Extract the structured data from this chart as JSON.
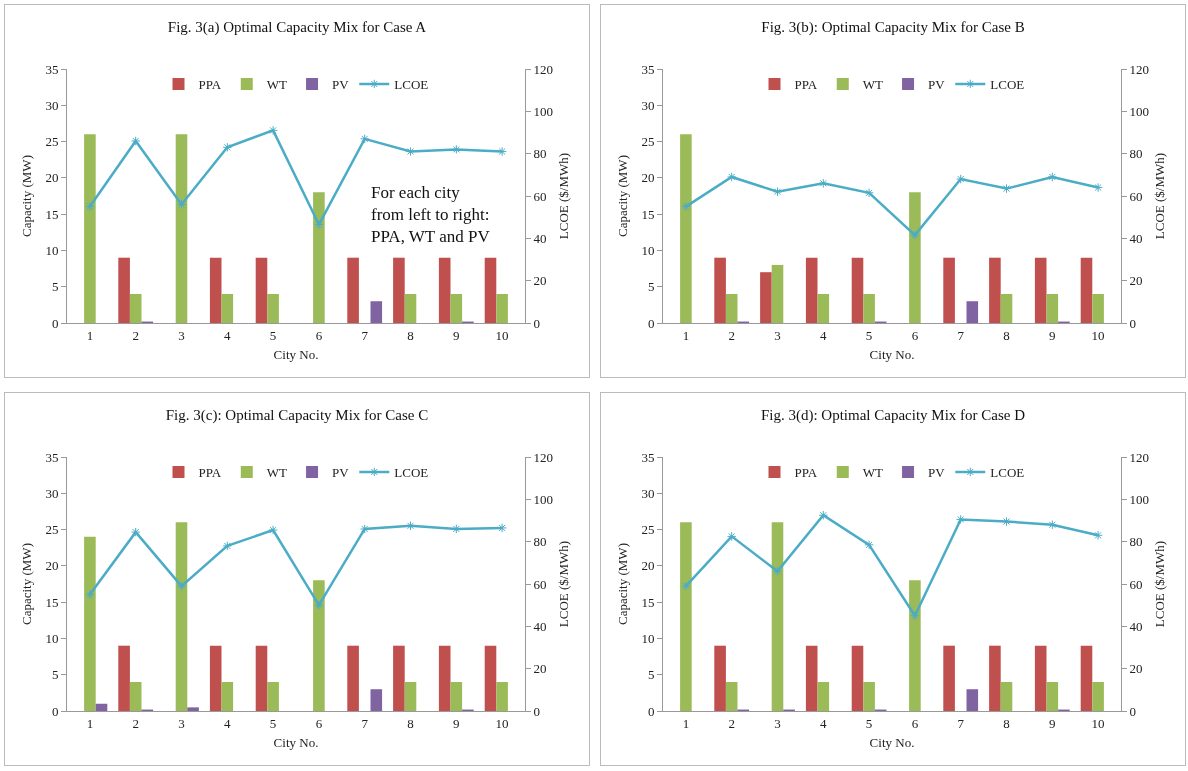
{
  "chart_data": [
    {
      "type": "bar",
      "title": "Fig. 3(a) Optimal Capacity Mix for Case A",
      "xlabel": "City No.",
      "ylabel": "Capacity (MW)",
      "y2label": "LCOE ($/MWh)",
      "categories": [
        "1",
        "2",
        "3",
        "4",
        "5",
        "6",
        "7",
        "8",
        "9",
        "10"
      ],
      "series": [
        {
          "name": "PPA",
          "color": "#c0504d",
          "values": [
            0,
            9,
            0,
            9,
            9,
            0,
            9,
            9,
            9,
            9
          ]
        },
        {
          "name": "WT",
          "color": "#9bbb59",
          "values": [
            26,
            4,
            26,
            4,
            4,
            18,
            0,
            4,
            4,
            4
          ]
        },
        {
          "name": "PV",
          "color": "#8064a2",
          "values": [
            0,
            0.2,
            0,
            0,
            0,
            0,
            3,
            0,
            0.2,
            0
          ]
        },
        {
          "name": "LCOE",
          "type": "line",
          "axis": "y2",
          "color": "#4bacc6",
          "values": [
            55,
            86,
            56,
            83,
            91,
            46.5,
            87,
            81,
            82,
            81
          ]
        }
      ],
      "ylim": [
        0,
        35
      ],
      "yticks": [
        0,
        5,
        10,
        15,
        20,
        25,
        30,
        35
      ],
      "y2lim": [
        0,
        120
      ],
      "y2ticks": [
        0,
        20,
        40,
        60,
        80,
        100,
        120
      ],
      "grid": false,
      "legend": "top",
      "marker": "cross",
      "line_style": "solid",
      "annotations": [
        "For each city\nfrom left to right:\nPPA, WT and PV"
      ]
    },
    {
      "type": "bar",
      "title": "Fig. 3(b): Optimal Capacity Mix for Case B",
      "xlabel": "City No.",
      "ylabel": "Capacity (MW)",
      "y2label": "LCOE ($/MWh)",
      "categories": [
        "1",
        "2",
        "3",
        "4",
        "5",
        "6",
        "7",
        "8",
        "9",
        "10"
      ],
      "series": [
        {
          "name": "PPA",
          "color": "#c0504d",
          "values": [
            0,
            9,
            7,
            9,
            9,
            0,
            9,
            9,
            9,
            9
          ]
        },
        {
          "name": "WT",
          "color": "#9bbb59",
          "values": [
            26,
            4,
            8,
            4,
            4,
            18,
            0,
            4,
            4,
            4
          ]
        },
        {
          "name": "PV",
          "color": "#8064a2",
          "values": [
            0,
            0.2,
            0,
            0,
            0.2,
            0,
            3,
            0,
            0.2,
            0
          ]
        },
        {
          "name": "LCOE",
          "type": "line",
          "axis": "y2",
          "color": "#4bacc6",
          "values": [
            55,
            69,
            62,
            66,
            61.5,
            41.5,
            68,
            63.5,
            69,
            64
          ]
        }
      ],
      "ylim": [
        0,
        35
      ],
      "yticks": [
        0,
        5,
        10,
        15,
        20,
        25,
        30,
        35
      ],
      "y2lim": [
        0,
        120
      ],
      "y2ticks": [
        0,
        20,
        40,
        60,
        80,
        100,
        120
      ],
      "grid": false,
      "legend": "top",
      "marker": "cross",
      "line_style": "solid"
    },
    {
      "type": "bar",
      "title": "Fig. 3(c): Optimal Capacity Mix for Case C",
      "xlabel": "City No.",
      "ylabel": "Capacity (MW)",
      "y2label": "LCOE ($/MWh)",
      "categories": [
        "1",
        "2",
        "3",
        "4",
        "5",
        "6",
        "7",
        "8",
        "9",
        "10"
      ],
      "series": [
        {
          "name": "PPA",
          "color": "#c0504d",
          "values": [
            0,
            9,
            0,
            9,
            9,
            0,
            9,
            9,
            9,
            9
          ]
        },
        {
          "name": "WT",
          "color": "#9bbb59",
          "values": [
            24,
            4,
            26,
            4,
            4,
            18,
            0,
            4,
            4,
            4
          ]
        },
        {
          "name": "PV",
          "color": "#8064a2",
          "values": [
            1,
            0.2,
            0.5,
            0,
            0,
            0,
            3,
            0,
            0.2,
            0
          ]
        },
        {
          "name": "LCOE",
          "type": "line",
          "axis": "y2",
          "color": "#4bacc6",
          "values": [
            55,
            84.5,
            59,
            78,
            85.5,
            50,
            86,
            87.5,
            86,
            86.5
          ]
        }
      ],
      "ylim": [
        0,
        35
      ],
      "yticks": [
        0,
        5,
        10,
        15,
        20,
        25,
        30,
        35
      ],
      "y2lim": [
        0,
        120
      ],
      "y2ticks": [
        0,
        20,
        40,
        60,
        80,
        100,
        120
      ],
      "grid": false,
      "legend": "top",
      "marker": "cross",
      "line_style": "solid"
    },
    {
      "type": "bar",
      "title": "Fig. 3(d): Optimal Capacity Mix for Case D",
      "xlabel": "City No.",
      "ylabel": "Capacity (MW)",
      "y2label": "LCOE ($/MWh)",
      "categories": [
        "1",
        "2",
        "3",
        "4",
        "5",
        "6",
        "7",
        "8",
        "9",
        "10"
      ],
      "series": [
        {
          "name": "PPA",
          "color": "#c0504d",
          "values": [
            0,
            9,
            0,
            9,
            9,
            0,
            9,
            9,
            9,
            9
          ]
        },
        {
          "name": "WT",
          "color": "#9bbb59",
          "values": [
            26,
            4,
            26,
            4,
            4,
            18,
            0,
            4,
            4,
            4
          ]
        },
        {
          "name": "PV",
          "color": "#8064a2",
          "values": [
            0,
            0.2,
            0.2,
            0,
            0.2,
            0,
            3,
            0,
            0.2,
            0
          ]
        },
        {
          "name": "LCOE",
          "type": "line",
          "axis": "y2",
          "color": "#4bacc6",
          "values": [
            59,
            82.5,
            66,
            92.5,
            78.5,
            45,
            90.5,
            89.5,
            88,
            83
          ]
        }
      ],
      "ylim": [
        0,
        35
      ],
      "yticks": [
        0,
        5,
        10,
        15,
        20,
        25,
        30,
        35
      ],
      "y2lim": [
        0,
        120
      ],
      "y2ticks": [
        0,
        20,
        40,
        60,
        80,
        100,
        120
      ],
      "grid": false,
      "legend": "top",
      "marker": "cross",
      "line_style": "solid"
    }
  ]
}
